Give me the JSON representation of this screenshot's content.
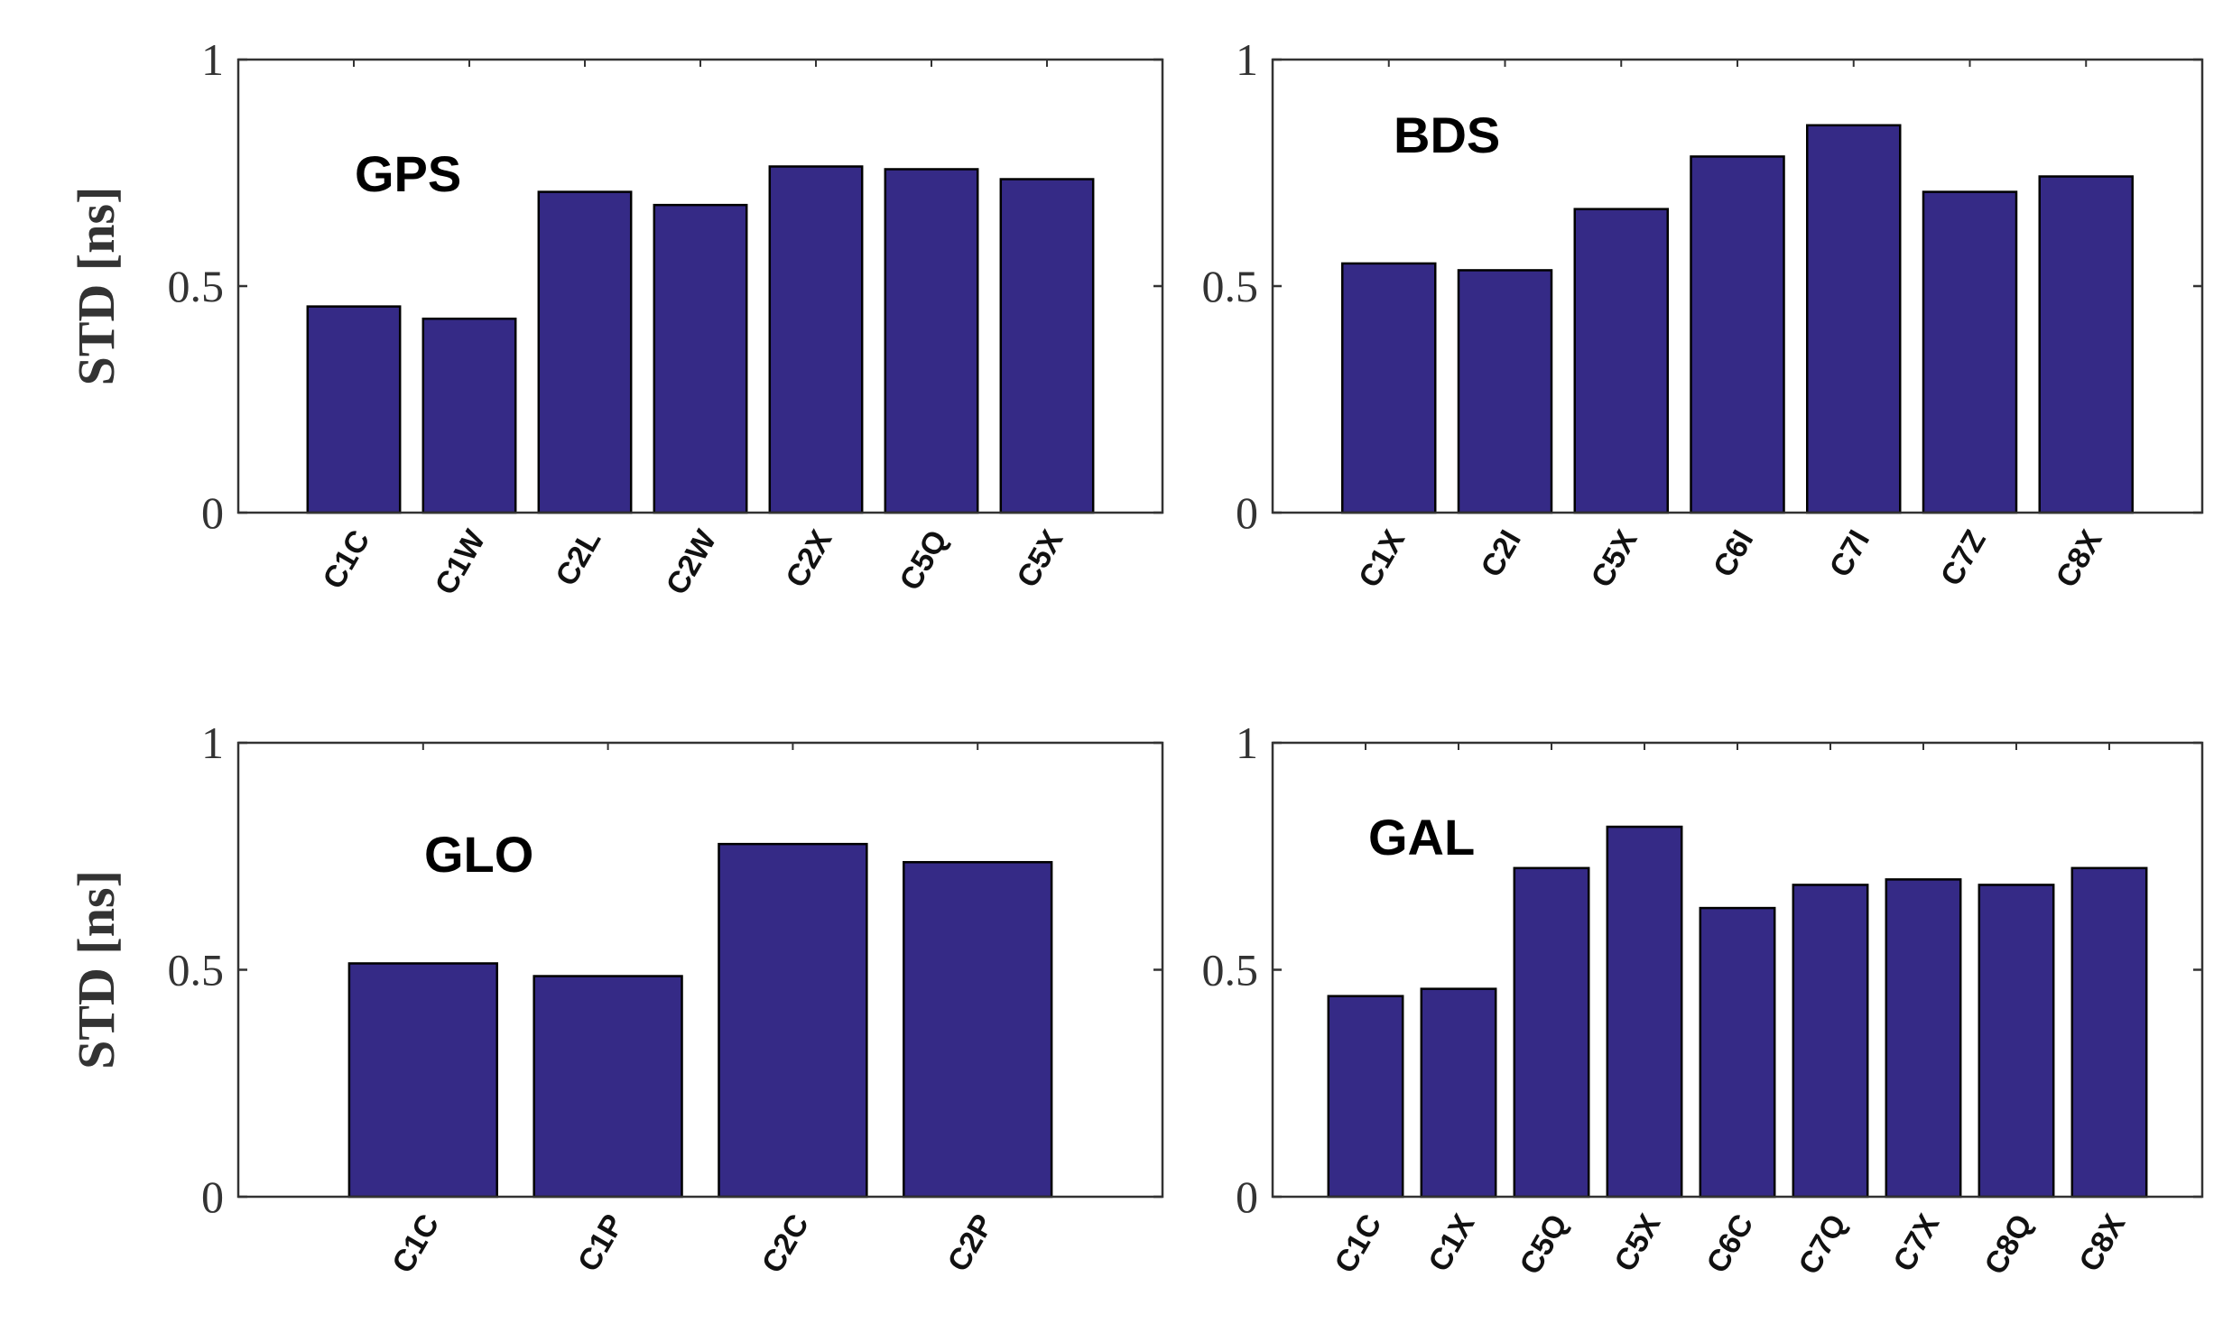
{
  "chart_data": [
    {
      "type": "bar",
      "annotation": "GPS",
      "ylabel": "STD [ns]",
      "categories": [
        "C1C",
        "C1W",
        "C2L",
        "C2W",
        "C2X",
        "C5Q",
        "C5X"
      ],
      "values": [
        0.455,
        0.428,
        0.708,
        0.679,
        0.764,
        0.758,
        0.736
      ],
      "ylim": [
        0,
        1
      ],
      "yticks": [
        "0",
        "0.5",
        "1"
      ],
      "grid": false
    },
    {
      "type": "bar",
      "annotation": "BDS",
      "ylabel": "",
      "categories": [
        "C1X",
        "C2I",
        "C5X",
        "C6I",
        "C7I",
        "C7Z",
        "C8X"
      ],
      "values": [
        0.55,
        0.535,
        0.67,
        0.786,
        0.855,
        0.708,
        0.742
      ],
      "ylim": [
        0,
        1
      ],
      "yticks": [
        "0",
        "0.5",
        "1"
      ],
      "grid": false
    },
    {
      "type": "bar",
      "annotation": "GLO",
      "ylabel": "STD [ns]",
      "categories": [
        "C1C",
        "C1P",
        "C2C",
        "C2P"
      ],
      "values": [
        0.514,
        0.486,
        0.777,
        0.737
      ],
      "ylim": [
        0,
        1
      ],
      "yticks": [
        "0",
        "0.5",
        "1"
      ],
      "grid": false
    },
    {
      "type": "bar",
      "annotation": "GAL",
      "ylabel": "",
      "categories": [
        "C1C",
        "C1X",
        "C5Q",
        "C5X",
        "C6C",
        "C7Q",
        "C7X",
        "C8Q",
        "C8X"
      ],
      "values": [
        0.442,
        0.458,
        0.724,
        0.815,
        0.636,
        0.687,
        0.699,
        0.687,
        0.724
      ],
      "ylim": [
        0,
        1
      ],
      "yticks": [
        "0",
        "0.5",
        "1"
      ],
      "grid": false
    }
  ],
  "colors": {
    "bar": "#352a86",
    "bar_edge": "#000000",
    "axis": "#333333"
  }
}
